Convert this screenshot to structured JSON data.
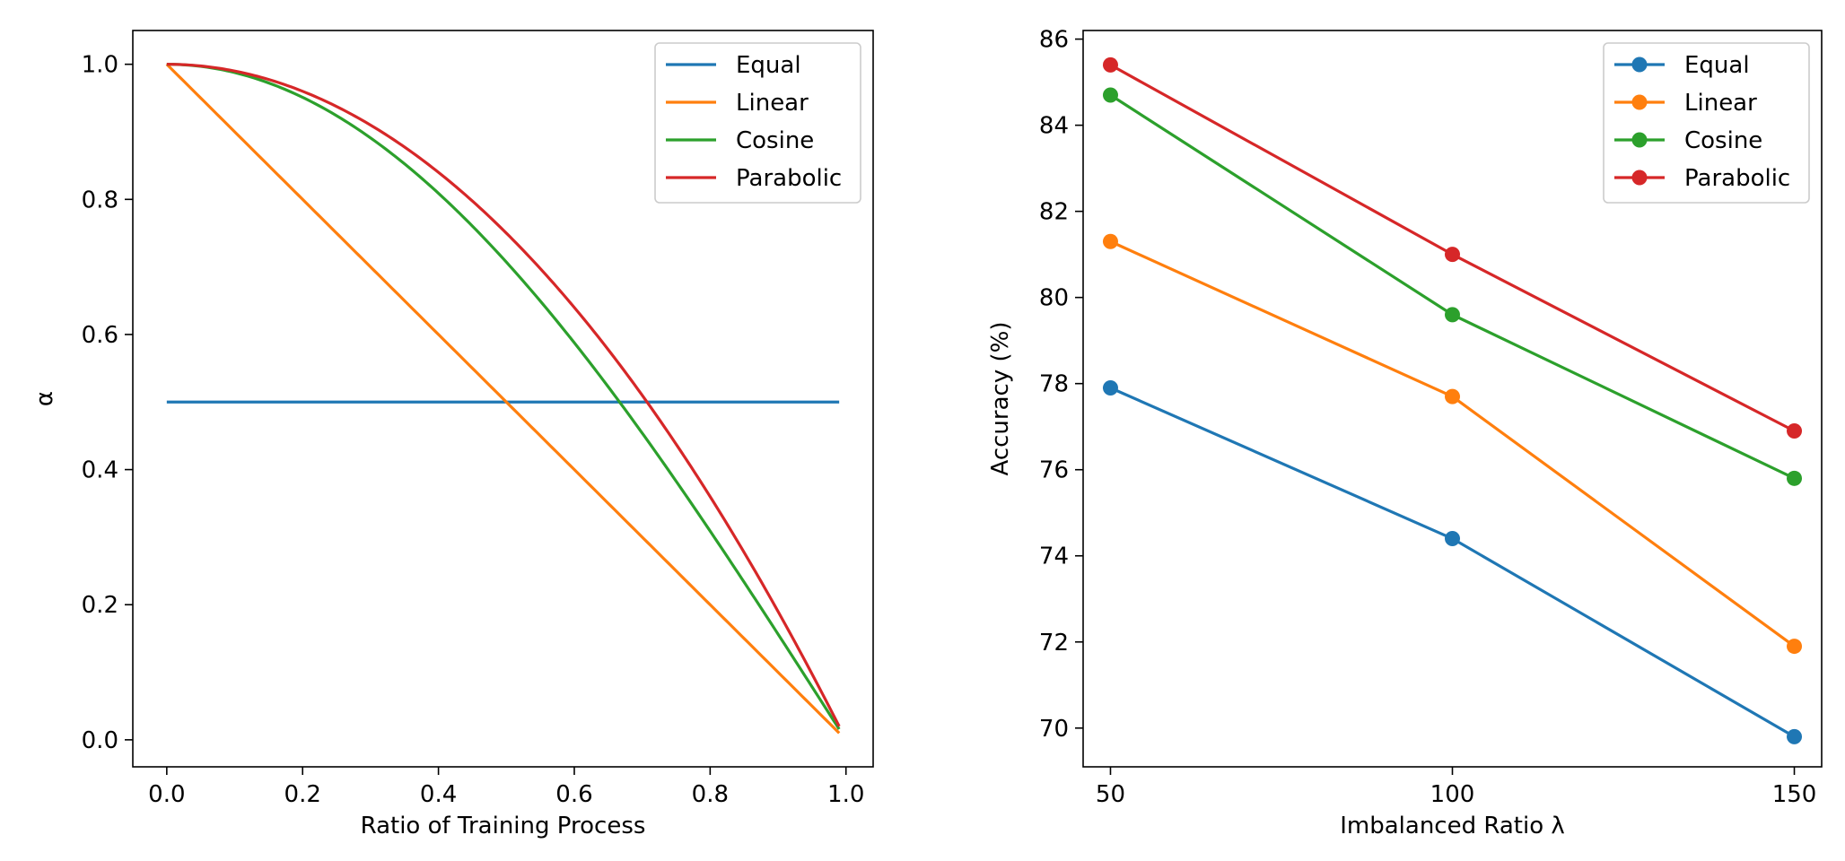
{
  "chart_data": [
    {
      "type": "line",
      "title": "",
      "xlabel": "Ratio of Training Process",
      "ylabel": "α",
      "xlim": [
        -0.05,
        1.04
      ],
      "ylim": [
        -0.04,
        1.05
      ],
      "xticks": [
        0.0,
        0.2,
        0.4,
        0.6,
        0.8,
        1.0
      ],
      "xtick_labels": [
        "0.0",
        "0.2",
        "0.4",
        "0.6",
        "0.8",
        "1.0"
      ],
      "yticks": [
        0.0,
        0.2,
        0.4,
        0.6,
        0.8,
        1.0
      ],
      "ytick_labels": [
        "0.0",
        "0.2",
        "0.4",
        "0.6",
        "0.8",
        "1.0"
      ],
      "grid": false,
      "legend": "top-right",
      "x_range": [
        0.0,
        0.99
      ],
      "series": [
        {
          "name": "Equal",
          "formula": "0.5",
          "color": "#1f77b4",
          "marker": "none"
        },
        {
          "name": "Linear",
          "formula": "1 - x",
          "color": "#ff7f0e",
          "marker": "none"
        },
        {
          "name": "Cosine",
          "formula": "cos(pi * x / 2)",
          "color": "#2ca02c",
          "marker": "none"
        },
        {
          "name": "Parabolic",
          "formula": "1 - x^2",
          "color": "#d62728",
          "marker": "none"
        }
      ]
    },
    {
      "type": "line",
      "title": "",
      "xlabel": "Imbalanced Ratio λ",
      "ylabel": "Accuracy (%)",
      "x": [
        50,
        100,
        150
      ],
      "xlim": [
        46,
        154
      ],
      "ylim": [
        69.1,
        86.2
      ],
      "xticks": [
        50,
        100,
        150
      ],
      "xtick_labels": [
        "50",
        "100",
        "150"
      ],
      "yticks": [
        70,
        72,
        74,
        76,
        78,
        80,
        82,
        84,
        86
      ],
      "ytick_labels": [
        "70",
        "72",
        "74",
        "76",
        "78",
        "80",
        "82",
        "84",
        "86"
      ],
      "grid": false,
      "legend": "top-right",
      "series": [
        {
          "name": "Equal",
          "values": [
            77.9,
            74.4,
            69.8
          ],
          "color": "#1f77b4",
          "marker": "circle"
        },
        {
          "name": "Linear",
          "values": [
            81.3,
            77.7,
            71.9
          ],
          "color": "#ff7f0e",
          "marker": "circle"
        },
        {
          "name": "Cosine",
          "values": [
            84.7,
            79.6,
            75.8
          ],
          "color": "#2ca02c",
          "marker": "circle"
        },
        {
          "name": "Parabolic",
          "values": [
            85.4,
            81.0,
            76.9
          ],
          "color": "#d62728",
          "marker": "circle"
        }
      ]
    }
  ]
}
